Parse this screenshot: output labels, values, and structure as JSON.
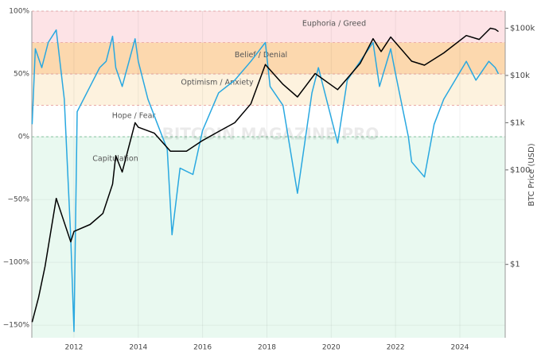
{
  "chart_data": {
    "type": "line",
    "watermark": "BITCOIN MAGAZINE PRO",
    "y2_label": "BTC Price (USD)",
    "xlim": [
      2010.69,
      2025.41
    ],
    "xticks": [
      2012,
      2014,
      2016,
      2018,
      2020,
      2022,
      2024
    ],
    "ylim": [
      -160,
      100
    ],
    "yticks": [
      {
        "value": 100,
        "label": "100%"
      },
      {
        "value": 50,
        "label": "50%"
      },
      {
        "value": 0,
        "label": "0%"
      },
      {
        "value": -50,
        "label": "−50%"
      },
      {
        "value": -100,
        "label": "−100%"
      },
      {
        "value": -150,
        "label": "−150%"
      }
    ],
    "y2lim": [
      0.028,
      230000
    ],
    "y2log": true,
    "y2ticks": [
      {
        "value": 100000,
        "label": "$100k"
      },
      {
        "value": 10000,
        "label": "$10k"
      },
      {
        "value": 1000,
        "label": "$1k"
      },
      {
        "value": 100,
        "label": "$100"
      },
      {
        "value": 1,
        "label": "$1"
      }
    ],
    "grid": true,
    "zones": [
      {
        "label": "Euphoria / Greed",
        "from": 75,
        "to": 100,
        "color": "#fde3e6"
      },
      {
        "label": "Belief / Denial",
        "from": 50,
        "to": 75,
        "color": "#fcd8ae"
      },
      {
        "label": "Optimism / Anxiety",
        "from": 25,
        "to": 50,
        "color": "#fdf2de"
      },
      {
        "label": "Hope / Fear",
        "from": 0,
        "to": 25,
        "color": "#ffffff"
      },
      {
        "label": "Capitulation",
        "from": -160,
        "to": 0,
        "color": "#e9f9f0"
      }
    ],
    "series": [
      {
        "color": "#29a8e0",
        "axis": "y",
        "x": [
          2010.7,
          2010.8,
          2011.0,
          2011.2,
          2011.45,
          2011.7,
          2011.9,
          2012.0,
          2012.1,
          2012.5,
          2012.8,
          2013.0,
          2013.2,
          2013.3,
          2013.5,
          2013.9,
          2014.0,
          2014.3,
          2014.6,
          2014.9,
          2015.05,
          2015.3,
          2015.7,
          2016.0,
          2016.5,
          2017.0,
          2017.5,
          2017.95,
          2018.1,
          2018.5,
          2018.95,
          2019.4,
          2019.6,
          2020.2,
          2020.5,
          2020.9,
          2021.3,
          2021.5,
          2021.85,
          2022.0,
          2022.4,
          2022.5,
          2022.9,
          2023.2,
          2023.5,
          2024.2,
          2024.5,
          2024.9,
          2025.1,
          2025.2
        ],
        "values": [
          10,
          70,
          55,
          75,
          85,
          30,
          -80,
          -155,
          20,
          40,
          55,
          60,
          80,
          55,
          40,
          78,
          60,
          30,
          10,
          -10,
          -78,
          -25,
          -30,
          5,
          35,
          45,
          60,
          75,
          40,
          25,
          -45,
          35,
          55,
          -5,
          45,
          60,
          75,
          40,
          70,
          50,
          0,
          -20,
          -32,
          10,
          30,
          60,
          45,
          60,
          55,
          50
        ]
      },
      {
        "color": "#000000",
        "axis": "y2",
        "x": [
          2010.7,
          2010.9,
          2011.1,
          2011.45,
          2011.9,
          2012.0,
          2012.5,
          2012.9,
          2013.2,
          2013.3,
          2013.5,
          2013.9,
          2014.0,
          2014.5,
          2015.0,
          2015.5,
          2016.0,
          2016.5,
          2017.0,
          2017.5,
          2017.95,
          2018.5,
          2018.95,
          2019.5,
          2020.2,
          2020.9,
          2021.3,
          2021.55,
          2021.85,
          2022.5,
          2022.9,
          2023.5,
          2024.2,
          2024.6,
          2024.95,
          2025.1,
          2025.2
        ],
        "values": [
          0.06,
          0.2,
          0.9,
          25,
          3,
          5,
          7,
          12,
          50,
          200,
          90,
          1000,
          800,
          600,
          250,
          250,
          420,
          650,
          1000,
          2500,
          17000,
          6500,
          3500,
          11000,
          5000,
          18000,
          60000,
          32000,
          65000,
          20000,
          16500,
          30000,
          70000,
          58000,
          100000,
          95000,
          85000
        ]
      }
    ]
  }
}
